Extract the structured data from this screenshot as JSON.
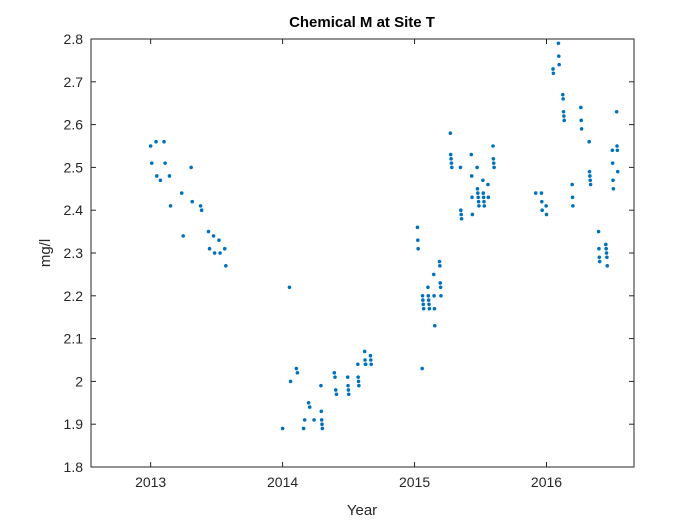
{
  "chart_data": {
    "type": "scatter",
    "title": "Chemical M at Site T",
    "xlabel": "Year",
    "ylabel": "mg/l",
    "xlim": [
      "2012-07-20",
      "2016-08-30"
    ],
    "ylim": [
      1.8,
      2.8
    ],
    "x_ticks": [
      "2013",
      "2014",
      "2015",
      "2016"
    ],
    "x_tick_dates": [
      "2013-01-01",
      "2014-01-01",
      "2015-01-01",
      "2016-01-01"
    ],
    "y_ticks": [
      "1.8",
      "1.9",
      "2",
      "2.1",
      "2.2",
      "2.3",
      "2.4",
      "2.5",
      "2.6",
      "2.7",
      "2.8"
    ],
    "grid": false,
    "marker_color": "#0072BD",
    "axis_color": "#262626",
    "series": [
      {
        "points": [
          [
            "2013-01-01",
            2.55
          ],
          [
            "2013-01-04",
            2.51
          ],
          [
            "2013-01-16",
            2.56
          ],
          [
            "2013-01-18",
            2.48
          ],
          [
            "2013-01-28",
            2.47
          ],
          [
            "2013-02-07",
            2.56
          ],
          [
            "2013-02-10",
            2.51
          ],
          [
            "2013-02-22",
            2.48
          ],
          [
            "2013-02-25",
            2.41
          ],
          [
            "2013-03-28",
            2.44
          ],
          [
            "2013-04-01",
            2.34
          ],
          [
            "2013-04-23",
            2.5
          ],
          [
            "2013-04-26",
            2.42
          ],
          [
            "2013-05-19",
            2.41
          ],
          [
            "2013-05-22",
            2.4
          ],
          [
            "2013-06-10",
            2.35
          ],
          [
            "2013-06-13",
            2.31
          ],
          [
            "2013-06-24",
            2.34
          ],
          [
            "2013-06-27",
            2.3
          ],
          [
            "2013-07-09",
            2.33
          ],
          [
            "2013-07-12",
            2.3
          ],
          [
            "2013-07-25",
            2.31
          ],
          [
            "2013-07-28",
            2.27
          ],
          [
            "2014-01-01",
            1.89
          ],
          [
            "2014-01-20",
            2.22
          ],
          [
            "2014-01-23",
            2.0
          ],
          [
            "2014-02-08",
            2.03
          ],
          [
            "2014-02-11",
            2.02
          ],
          [
            "2014-02-28",
            1.89
          ],
          [
            "2014-03-03",
            1.91
          ],
          [
            "2014-03-14",
            1.95
          ],
          [
            "2014-03-17",
            1.94
          ],
          [
            "2014-03-29",
            1.91
          ],
          [
            "2014-04-17",
            1.99
          ],
          [
            "2014-04-18",
            1.93
          ],
          [
            "2014-04-19",
            1.91
          ],
          [
            "2014-04-20",
            1.9
          ],
          [
            "2014-04-21",
            1.89
          ],
          [
            "2014-05-24",
            2.02
          ],
          [
            "2014-05-26",
            2.01
          ],
          [
            "2014-05-28",
            1.98
          ],
          [
            "2014-05-30",
            1.97
          ],
          [
            "2014-06-30",
            2.01
          ],
          [
            "2014-07-01",
            1.99
          ],
          [
            "2014-07-02",
            1.98
          ],
          [
            "2014-07-03",
            1.97
          ],
          [
            "2014-07-28",
            2.04
          ],
          [
            "2014-07-29",
            2.01
          ],
          [
            "2014-07-30",
            2.0
          ],
          [
            "2014-07-31",
            1.99
          ],
          [
            "2014-08-16",
            2.07
          ],
          [
            "2014-08-17",
            2.05
          ],
          [
            "2014-08-18",
            2.04
          ],
          [
            "2014-08-19",
            2.04
          ],
          [
            "2014-09-01",
            2.06
          ],
          [
            "2014-09-02",
            2.05
          ],
          [
            "2014-09-03",
            2.04
          ],
          [
            "2015-01-09",
            2.36
          ],
          [
            "2015-01-10",
            2.33
          ],
          [
            "2015-01-11",
            2.31
          ],
          [
            "2015-01-22",
            2.03
          ],
          [
            "2015-01-23",
            2.2
          ],
          [
            "2015-01-24",
            2.19
          ],
          [
            "2015-01-25",
            2.18
          ],
          [
            "2015-01-26",
            2.17
          ],
          [
            "2015-02-07",
            2.22
          ],
          [
            "2015-02-08",
            2.2
          ],
          [
            "2015-02-09",
            2.19
          ],
          [
            "2015-02-10",
            2.18
          ],
          [
            "2015-02-11",
            2.17
          ],
          [
            "2015-02-23",
            2.25
          ],
          [
            "2015-02-24",
            2.2
          ],
          [
            "2015-02-25",
            2.17
          ],
          [
            "2015-02-26",
            2.13
          ],
          [
            "2015-03-11",
            2.28
          ],
          [
            "2015-03-12",
            2.27
          ],
          [
            "2015-03-13",
            2.23
          ],
          [
            "2015-03-14",
            2.22
          ],
          [
            "2015-03-15",
            2.2
          ],
          [
            "2015-04-10",
            2.58
          ],
          [
            "2015-04-11",
            2.53
          ],
          [
            "2015-04-12",
            2.52
          ],
          [
            "2015-04-13",
            2.51
          ],
          [
            "2015-04-14",
            2.5
          ],
          [
            "2015-05-08",
            2.5
          ],
          [
            "2015-05-09",
            2.4
          ],
          [
            "2015-05-10",
            2.39
          ],
          [
            "2015-05-11",
            2.38
          ],
          [
            "2015-06-07",
            2.53
          ],
          [
            "2015-06-08",
            2.48
          ],
          [
            "2015-06-09",
            2.43
          ],
          [
            "2015-06-10",
            2.39
          ],
          [
            "2015-06-23",
            2.5
          ],
          [
            "2015-06-24",
            2.45
          ],
          [
            "2015-06-25",
            2.44
          ],
          [
            "2015-06-26",
            2.43
          ],
          [
            "2015-06-27",
            2.42
          ],
          [
            "2015-06-28",
            2.41
          ],
          [
            "2015-07-09",
            2.47
          ],
          [
            "2015-07-10",
            2.44
          ],
          [
            "2015-07-11",
            2.43
          ],
          [
            "2015-07-12",
            2.42
          ],
          [
            "2015-07-13",
            2.41
          ],
          [
            "2015-07-23",
            2.46
          ],
          [
            "2015-07-24",
            2.43
          ],
          [
            "2015-08-06",
            2.55
          ],
          [
            "2015-08-07",
            2.52
          ],
          [
            "2015-08-08",
            2.51
          ],
          [
            "2015-08-09",
            2.5
          ],
          [
            "2015-12-02",
            2.44
          ],
          [
            "2015-12-18",
            2.44
          ],
          [
            "2015-12-19",
            2.42
          ],
          [
            "2015-12-20",
            2.4
          ],
          [
            "2015-12-31",
            2.41
          ],
          [
            "2016-01-01",
            2.39
          ],
          [
            "2016-01-19",
            2.73
          ],
          [
            "2016-01-20",
            2.72
          ],
          [
            "2016-02-03",
            2.79
          ],
          [
            "2016-02-04",
            2.76
          ],
          [
            "2016-02-05",
            2.74
          ],
          [
            "2016-02-15",
            2.67
          ],
          [
            "2016-02-16",
            2.66
          ],
          [
            "2016-02-17",
            2.63
          ],
          [
            "2016-02-18",
            2.62
          ],
          [
            "2016-02-19",
            2.61
          ],
          [
            "2016-03-12",
            2.46
          ],
          [
            "2016-03-13",
            2.43
          ],
          [
            "2016-03-14",
            2.41
          ],
          [
            "2016-04-05",
            2.64
          ],
          [
            "2016-04-06",
            2.61
          ],
          [
            "2016-04-07",
            2.59
          ],
          [
            "2016-04-28",
            2.56
          ],
          [
            "2016-04-29",
            2.49
          ],
          [
            "2016-04-30",
            2.48
          ],
          [
            "2016-05-01",
            2.47
          ],
          [
            "2016-05-02",
            2.46
          ],
          [
            "2016-05-24",
            2.35
          ],
          [
            "2016-05-25",
            2.31
          ],
          [
            "2016-05-26",
            2.29
          ],
          [
            "2016-05-27",
            2.28
          ],
          [
            "2016-06-13",
            2.32
          ],
          [
            "2016-06-14",
            2.31
          ],
          [
            "2016-06-15",
            2.3
          ],
          [
            "2016-06-16",
            2.29
          ],
          [
            "2016-06-17",
            2.27
          ],
          [
            "2016-07-01",
            2.54
          ],
          [
            "2016-07-02",
            2.51
          ],
          [
            "2016-07-03",
            2.47
          ],
          [
            "2016-07-04",
            2.45
          ],
          [
            "2016-07-13",
            2.63
          ],
          [
            "2016-07-14",
            2.55
          ],
          [
            "2016-07-15",
            2.54
          ],
          [
            "2016-07-16",
            2.49
          ]
        ]
      }
    ]
  }
}
